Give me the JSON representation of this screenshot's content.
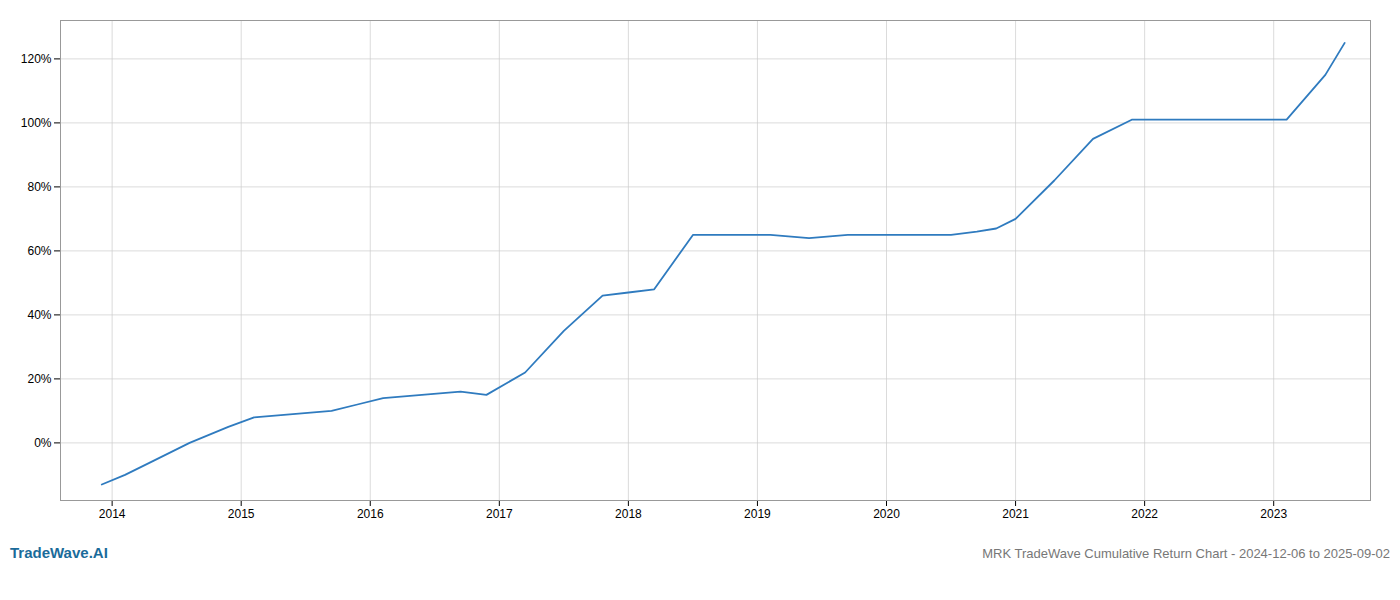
{
  "chart_data": {
    "type": "line",
    "title": "MRK TradeWave Cumulative Return Chart - 2024-12-06 to 2025-09-02",
    "annotations": [
      {
        "text": "TradeWave.AI",
        "color": "#1a6b9a"
      }
    ],
    "x": [
      2013.92,
      2014.1,
      2014.3,
      2014.6,
      2014.9,
      2015.1,
      2015.4,
      2015.7,
      2015.9,
      2016.1,
      2016.4,
      2016.7,
      2016.9,
      2017.2,
      2017.5,
      2017.8,
      2018.0,
      2018.2,
      2018.5,
      2018.8,
      2019.1,
      2019.4,
      2019.7,
      2019.9,
      2020.2,
      2020.5,
      2020.7,
      2020.85,
      2021.0,
      2021.3,
      2021.6,
      2021.9,
      2022.1,
      2022.4,
      2022.7,
      2022.9,
      2023.1,
      2023.4,
      2023.55
    ],
    "values": [
      -13,
      -10,
      -6,
      0,
      5,
      8,
      9,
      10,
      12,
      14,
      15,
      16,
      15,
      22,
      35,
      46,
      47,
      48,
      65,
      65,
      65,
      64,
      65,
      65,
      65,
      65,
      66,
      67,
      70,
      82,
      95,
      101,
      101,
      101,
      101,
      101,
      101,
      115,
      125
    ],
    "color": "#2f7bbf",
    "xlim": [
      2013.6,
      2023.75
    ],
    "xticks": [
      2014,
      2015,
      2016,
      2017,
      2018,
      2019,
      2020,
      2021,
      2022,
      2023
    ],
    "ylim": [
      -18,
      132
    ],
    "yticks": [
      {
        "value": 0,
        "label": "0%"
      },
      {
        "value": 20,
        "label": "20%"
      },
      {
        "value": 40,
        "label": "40%"
      },
      {
        "value": 60,
        "label": "60%"
      },
      {
        "value": 80,
        "label": "80%"
      },
      {
        "value": 100,
        "label": "100%"
      },
      {
        "value": 120,
        "label": "120%"
      }
    ],
    "grid": true
  }
}
